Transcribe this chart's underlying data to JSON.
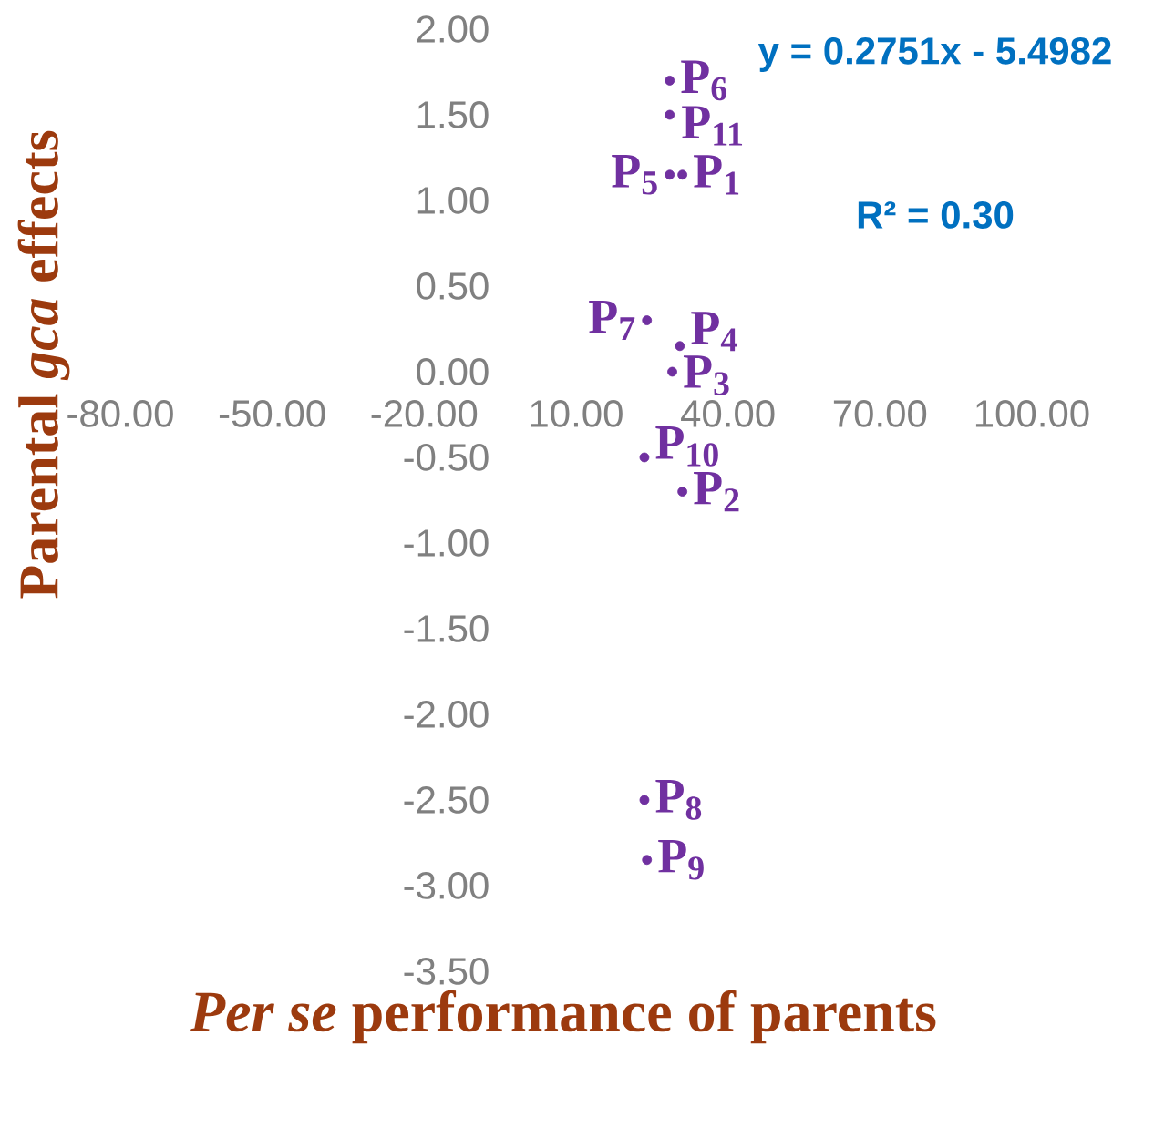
{
  "chart_data": {
    "type": "scatter",
    "xlabel": "*Per se* performance of parents",
    "ylabel": "Parental *gca* effects",
    "annotations": [
      "y = 0.2751x - 5.4982",
      "R² = 0.30"
    ],
    "series": [
      {
        "name": "P$_{1}$",
        "color": "#7030a0",
        "x": [
          31
        ],
        "values": [
          1.15
        ]
      },
      {
        "name": "P$_{2}$",
        "color": "#7030a0",
        "x": [
          31
        ],
        "values": [
          -0.7
        ]
      },
      {
        "name": "P$_{3}$",
        "color": "#7030a0",
        "x": [
          29
        ],
        "values": [
          0
        ]
      },
      {
        "name": "P$_{4}$",
        "color": "#7030a0",
        "x": [
          30.5
        ],
        "values": [
          0.15
        ]
      },
      {
        "name": "P$_{5}$",
        "color": "#7030a0",
        "x": [
          28.5
        ],
        "values": [
          1.15
        ]
      },
      {
        "name": "P$_{6}$",
        "color": "#7030a0",
        "x": [
          28.5
        ],
        "values": [
          1.7
        ]
      },
      {
        "name": "P$_{7}$",
        "color": "#7030a0",
        "x": [
          24
        ],
        "values": [
          0.3
        ]
      },
      {
        "name": "P$_{8}$",
        "color": "#7030a0",
        "x": [
          23.5
        ],
        "values": [
          -2.5
        ]
      },
      {
        "name": "P$_{9}$",
        "color": "#7030a0",
        "x": [
          24
        ],
        "values": [
          -2.85
        ]
      },
      {
        "name": "P$_{10}$",
        "color": "#7030a0",
        "x": [
          23.5
        ],
        "values": [
          -0.5
        ]
      },
      {
        "name": "P$_{11}$",
        "color": "#7030a0",
        "x": [
          28.5
        ],
        "values": [
          1.5
        ]
      }
    ],
    "marker": "circle",
    "xlim": [
      -80,
      100
    ],
    "ylim": [
      -3.5,
      2
    ],
    "xticks": [
      {
        "value": -80,
        "label": "-80.00"
      },
      {
        "value": -50,
        "label": "-50.00"
      },
      {
        "value": -20,
        "label": "-20.00"
      },
      {
        "value": 10,
        "label": "10.00"
      },
      {
        "value": 40,
        "label": "40.00"
      },
      {
        "value": 70,
        "label": "70.00"
      },
      {
        "value": 100,
        "label": "100.00"
      }
    ],
    "yticks": [
      {
        "value": -3.5,
        "label": "-3.50"
      },
      {
        "value": -3,
        "label": "-3.00"
      },
      {
        "value": -2.5,
        "label": "-2.50"
      },
      {
        "value": -2,
        "label": "-2.00"
      },
      {
        "value": -1.5,
        "label": "-1.50"
      },
      {
        "value": -1,
        "label": "-1.00"
      },
      {
        "value": -0.5,
        "label": "-0.50"
      },
      {
        "value": 0,
        "label": "0.00"
      },
      {
        "value": 0.5,
        "label": "0.50"
      },
      {
        "value": 1,
        "label": "1.00"
      },
      {
        "value": 1.5,
        "label": "1.50"
      },
      {
        "value": 2,
        "label": "2.00"
      }
    ]
  }
}
